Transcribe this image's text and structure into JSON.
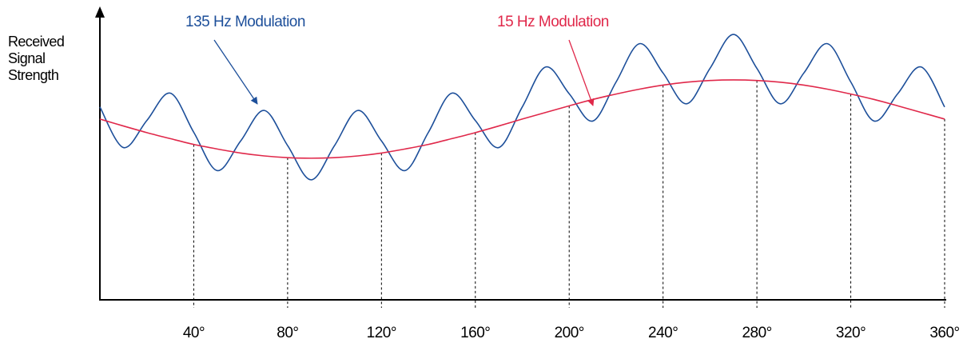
{
  "chart_data": {
    "type": "line",
    "ylabel": "Received Signal Strength",
    "x": [
      0,
      10,
      20,
      30,
      40,
      50,
      60,
      70,
      80,
      90,
      100,
      110,
      120,
      130,
      140,
      150,
      160,
      170,
      180,
      190,
      200,
      210,
      220,
      230,
      240,
      250,
      260,
      270,
      280,
      290,
      300,
      310,
      320,
      330,
      340,
      350,
      360
    ],
    "series": [
      {
        "name": "135 Hz Modulation",
        "color": "#1d4f9a",
        "values": [
          67.0,
          52.9,
          62.3,
          71.8,
          58.2,
          44.9,
          55.2,
          65.8,
          53.6,
          41.7,
          53.6,
          65.8,
          55.2,
          44.9,
          58.2,
          71.8,
          62.3,
          52.9,
          67.0,
          80.9,
          71.6,
          62.1,
          75.7,
          89.0,
          78.8,
          68.1,
          80.4,
          92.2,
          80.4,
          68.1,
          78.8,
          89.0,
          75.7,
          62.1,
          71.6,
          80.9,
          67.0
        ]
      },
      {
        "name": "15 Hz Modulation",
        "color": "#e0284a",
        "values": [
          62.8,
          60.4,
          58.1,
          56.0,
          54.0,
          52.4,
          51.0,
          50.0,
          49.4,
          49.2,
          49.4,
          50.0,
          51.0,
          52.4,
          54.0,
          56.0,
          58.1,
          60.4,
          62.8,
          65.1,
          67.4,
          69.6,
          71.5,
          73.2,
          74.6,
          75.6,
          76.2,
          76.4,
          76.2,
          75.6,
          74.6,
          73.2,
          71.5,
          69.6,
          67.4,
          65.1,
          62.8
        ]
      }
    ],
    "xlim": [
      0,
      360
    ],
    "ylim": [
      0,
      100
    ],
    "xticks": [
      {
        "value": 40,
        "label": "40°"
      },
      {
        "value": 80,
        "label": "80°"
      },
      {
        "value": 120,
        "label": "120°"
      },
      {
        "value": 160,
        "label": "160°"
      },
      {
        "value": 200,
        "label": "200°"
      },
      {
        "value": 240,
        "label": "240°"
      },
      {
        "value": 280,
        "label": "280°"
      },
      {
        "value": 320,
        "label": "320°"
      },
      {
        "value": 360,
        "label": "360°"
      }
    ]
  }
}
